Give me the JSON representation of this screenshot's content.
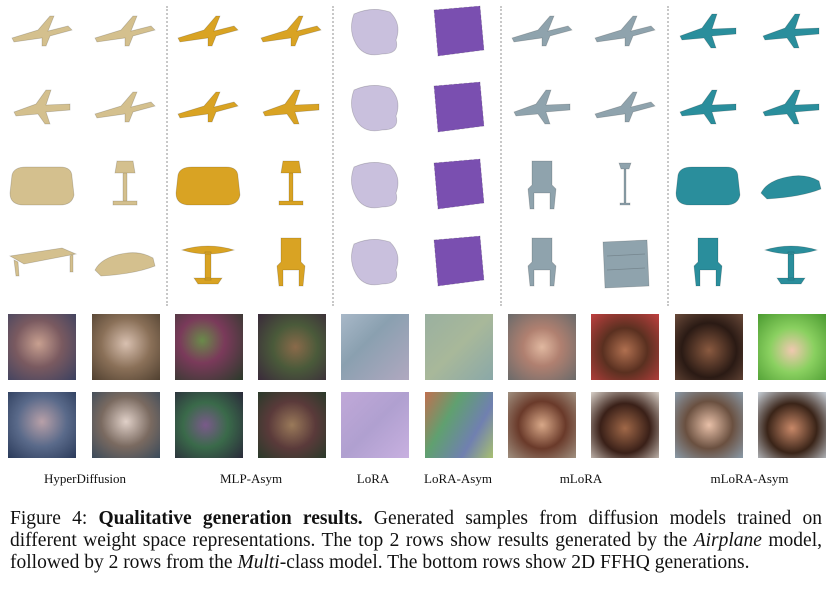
{
  "columns": [
    {
      "label": "HyperDiffusion"
    },
    {
      "label": "MLP-Asym"
    },
    {
      "label": "LoRA"
    },
    {
      "label": "LoRA-Asym"
    },
    {
      "label": "mLoRA"
    },
    {
      "label": "mLoRA-Asym"
    }
  ],
  "palette": {
    "hyperdiffusion": "#d4c08e",
    "mlp_asym": "#d9a323",
    "lora": "#c9c0dd",
    "lora_asym": "#7a4fb0",
    "mlora": "#8fa3ad",
    "mlora_asym": "#2a8e9c"
  },
  "caption": {
    "figure_label": "Figure 4:",
    "bold_title": "Qualitative generation results.",
    "text_1": " Generated samples from diffusion models trained on different weight space representations. The top 2 rows show results generated by the ",
    "italic_1": "Airplane",
    "text_2": " model, followed by 2 rows from the ",
    "italic_2": "Multi",
    "text_3": "-class model. The bottom rows show 2D FFHQ generations."
  }
}
